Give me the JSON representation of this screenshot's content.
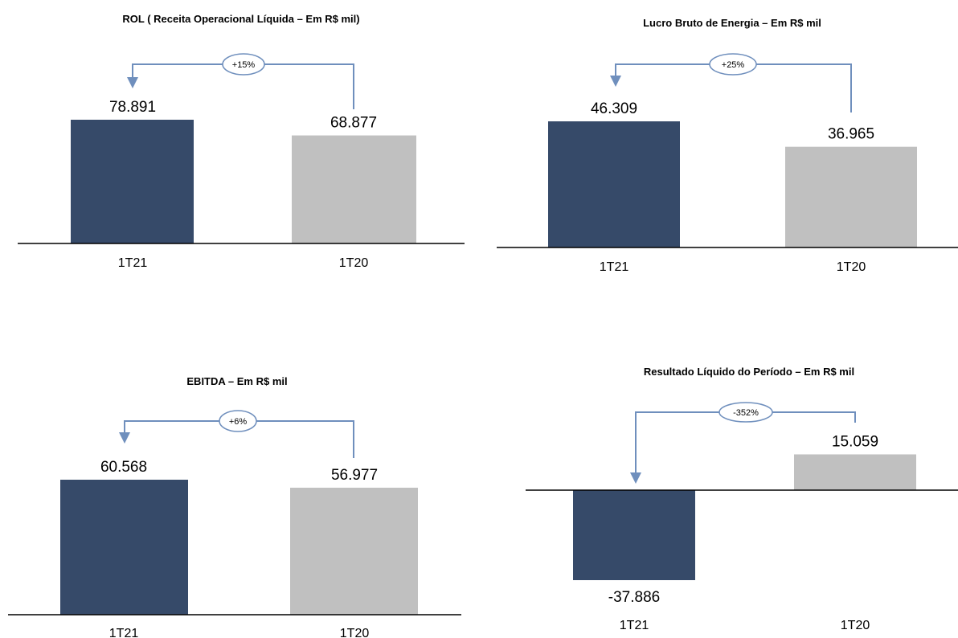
{
  "colors": {
    "current": "#364a69",
    "previous": "#c0c0c0",
    "arrow": "#6f8fbd",
    "axis": "#000000"
  },
  "chart_data": [
    {
      "type": "bar",
      "title": "ROL ( Receita Operacional Líquida – Em R$ mil)",
      "categories": [
        "1T21",
        "1T20"
      ],
      "values": [
        78891,
        68877
      ],
      "value_labels": [
        "78.891",
        "68.877"
      ],
      "variation_label": "+15%",
      "ylim": [
        0,
        80000
      ]
    },
    {
      "type": "bar",
      "title": "Lucro Bruto de Energia – Em R$ mil",
      "categories": [
        "1T21",
        "1T20"
      ],
      "values": [
        46309,
        36965
      ],
      "value_labels": [
        "46.309",
        "36.965"
      ],
      "variation_label": "+25%",
      "ylim": [
        0,
        47000
      ]
    },
    {
      "type": "bar",
      "title": "EBITDA – Em R$ mil",
      "categories": [
        "1T21",
        "1T20"
      ],
      "values": [
        60568,
        56977
      ],
      "value_labels": [
        "60.568",
        "56.977"
      ],
      "variation_label": "+6%",
      "ylim": [
        0,
        62000
      ]
    },
    {
      "type": "bar",
      "title": "Resultado Líquido do Período – Em R$ mil",
      "categories": [
        "1T21",
        "1T20"
      ],
      "values": [
        -37886,
        15059
      ],
      "value_labels": [
        "-37.886",
        "15.059"
      ],
      "variation_label": "-352%",
      "ylim": [
        -40000,
        16000
      ]
    }
  ]
}
